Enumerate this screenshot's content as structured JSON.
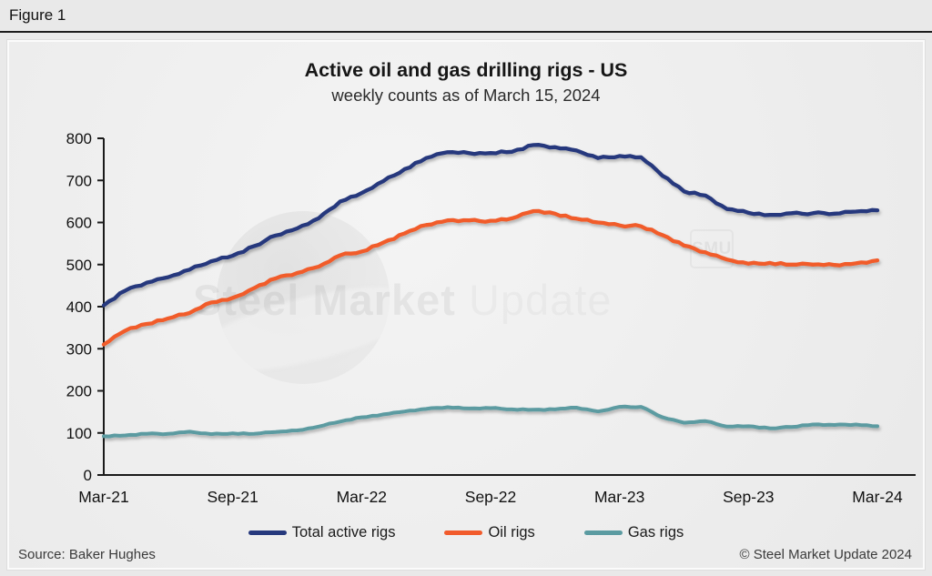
{
  "figure_label": "Figure 1",
  "chart": {
    "title": "Active oil and gas drilling rigs - US",
    "subtitle": "weekly counts as of March 15, 2024",
    "source": "Source: Baker Hughes",
    "copyright": "© Steel Market Update 2024",
    "watermark": {
      "bold": "Steel Market",
      "light": "Update",
      "badge": "SMU"
    }
  },
  "chart_data": {
    "type": "line",
    "title": "Active oil and gas drilling rigs - US",
    "subtitle": "weekly counts as of March 15, 2024",
    "xlabel": "",
    "ylabel": "",
    "ylim": [
      0,
      800
    ],
    "y_ticks": [
      0,
      100,
      200,
      300,
      400,
      500,
      600,
      700,
      800
    ],
    "x_tick_labels": [
      "Mar-21",
      "Sep-21",
      "Mar-22",
      "Sep-22",
      "Mar-23",
      "Sep-23",
      "Mar-24"
    ],
    "x_unit": "months since Mar-2021",
    "x": [
      0,
      1,
      2,
      3,
      4,
      5,
      6,
      7,
      8,
      9,
      10,
      11,
      12,
      13,
      14,
      15,
      16,
      17,
      18,
      19,
      20,
      21,
      22,
      23,
      24,
      25,
      26,
      27,
      28,
      29,
      30,
      31,
      32,
      33,
      34,
      35,
      36
    ],
    "grid": false,
    "legend_position": "bottom",
    "series": [
      {
        "name": "Total active rigs",
        "color": "#26397d",
        "values": [
          403,
          438,
          457,
          470,
          488,
          508,
          521,
          544,
          569,
          586,
          610,
          650,
          670,
          698,
          727,
          753,
          767,
          765,
          765,
          768,
          784,
          779,
          771,
          753,
          758,
          755,
          711,
          674,
          664,
          632,
          623,
          618,
          622,
          622,
          621,
          626,
          629
        ]
      },
      {
        "name": "Oil rigs",
        "color": "#f15b2c",
        "values": [
          310,
          343,
          359,
          372,
          385,
          410,
          421,
          444,
          467,
          480,
          495,
          522,
          531,
          552,
          574,
          594,
          605,
          605,
          604,
          610,
          627,
          621,
          609,
          600,
          593,
          591,
          570,
          545,
          529,
          512,
          502,
          504,
          500,
          500,
          499,
          503,
          510
        ]
      },
      {
        "name": "Gas rigs",
        "color": "#5b9ba1",
        "values": [
          92,
          94,
          98,
          98,
          103,
          97,
          99,
          98,
          102,
          106,
          115,
          127,
          137,
          144,
          151,
          157,
          161,
          158,
          159,
          156,
          155,
          156,
          160,
          151,
          162,
          162,
          137,
          124,
          128,
          115,
          116,
          111,
          114,
          120,
          119,
          120,
          116
        ]
      }
    ]
  }
}
